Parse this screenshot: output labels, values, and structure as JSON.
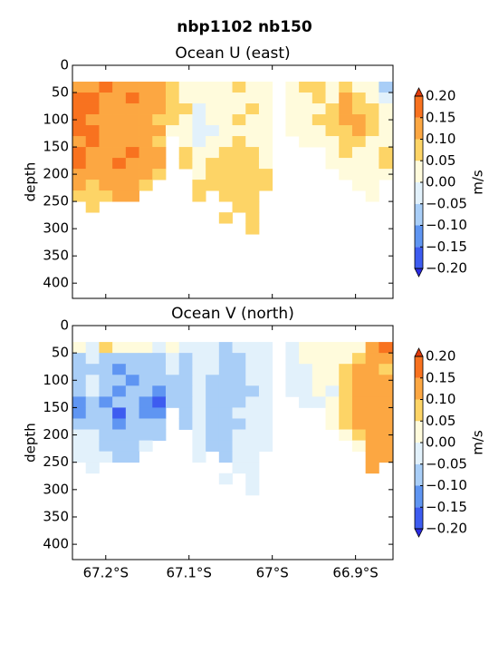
{
  "suptitle": "nbp1102 nb150",
  "chart_data": [
    {
      "type": "contour",
      "title": "Ocean U (east)",
      "ylabel": "depth",
      "y_inverted": true,
      "xlim": [
        -67.24,
        -66.855
      ],
      "xticks": [
        -67.2,
        -67.1,
        -67.0,
        -66.9
      ],
      "ylim": [
        0,
        428
      ],
      "yticks": [
        0,
        50,
        100,
        150,
        200,
        250,
        300,
        350,
        400
      ],
      "x": [
        -67.232,
        -67.216,
        -67.2,
        -67.184,
        -67.168,
        -67.152,
        -67.136,
        -67.12,
        -67.104,
        -67.088,
        -67.072,
        -67.056,
        -67.04,
        -67.024,
        -67.008,
        -66.992,
        -66.976,
        -66.96,
        -66.944,
        -66.928,
        -66.912,
        -66.896,
        -66.88,
        -66.864
      ],
      "depth": [
        40,
        60,
        80,
        100,
        120,
        140,
        160,
        180,
        200,
        220,
        240,
        260,
        280,
        300
      ],
      "values": [
        [
          0.12,
          0.12,
          0.17,
          0.12,
          0.12,
          0.12,
          0.12,
          0.07,
          0.02,
          0.02,
          0.02,
          0.02,
          0.07,
          0.02,
          0.02,
          null,
          0.02,
          0.07,
          0.07,
          0.02,
          0.07,
          0.02,
          0.02,
          -0.07
        ],
        [
          0.17,
          0.17,
          0.12,
          0.12,
          0.17,
          0.12,
          0.12,
          0.07,
          0.02,
          0.02,
          0.02,
          0.02,
          0.02,
          0.02,
          0.02,
          null,
          0.02,
          0.02,
          0.07,
          0.02,
          0.12,
          0.07,
          0.02,
          -0.02
        ],
        [
          0.17,
          0.17,
          0.12,
          0.12,
          0.12,
          0.12,
          0.12,
          0.07,
          0.07,
          -0.02,
          0.02,
          0.02,
          0.02,
          0.07,
          0.02,
          null,
          0.02,
          0.02,
          0.02,
          0.07,
          0.12,
          0.07,
          0.07,
          0.02
        ],
        [
          0.17,
          0.12,
          0.12,
          0.12,
          0.12,
          0.12,
          0.07,
          0.07,
          0.02,
          -0.02,
          0.02,
          0.02,
          0.07,
          0.02,
          0.02,
          null,
          0.02,
          0.02,
          0.07,
          0.07,
          0.12,
          0.12,
          0.07,
          0.02
        ],
        [
          0.17,
          0.17,
          0.12,
          0.12,
          0.12,
          0.12,
          0.12,
          0.02,
          0.02,
          -0.02,
          -0.02,
          0.02,
          0.02,
          0.02,
          0.02,
          null,
          0.02,
          0.02,
          0.02,
          0.07,
          0.07,
          0.12,
          0.07,
          0.02
        ],
        [
          0.12,
          0.17,
          0.12,
          0.12,
          0.12,
          0.12,
          0.07,
          null,
          0.02,
          -0.02,
          0.02,
          0.02,
          0.07,
          0.02,
          0.02,
          null,
          null,
          0.02,
          0.02,
          0.02,
          0.07,
          0.07,
          0.02,
          0.02
        ],
        [
          0.17,
          0.12,
          0.12,
          0.12,
          0.17,
          0.12,
          0.12,
          null,
          0.07,
          0.02,
          0.02,
          0.07,
          0.07,
          0.07,
          0.02,
          null,
          null,
          null,
          null,
          0.02,
          0.07,
          0.02,
          0.02,
          0.07
        ],
        [
          0.17,
          0.12,
          0.12,
          0.17,
          0.12,
          0.12,
          0.12,
          null,
          0.07,
          0.02,
          0.07,
          0.07,
          0.07,
          0.07,
          0.02,
          null,
          null,
          null,
          null,
          0.02,
          0.02,
          0.02,
          0.02,
          0.07
        ],
        [
          0.12,
          0.12,
          0.12,
          0.12,
          0.12,
          0.12,
          0.07,
          null,
          null,
          0.02,
          0.07,
          0.07,
          0.07,
          0.07,
          0.07,
          null,
          null,
          null,
          null,
          null,
          0.02,
          0.02,
          0.02,
          0.02
        ],
        [
          0.12,
          0.07,
          0.12,
          0.12,
          0.12,
          0.07,
          null,
          null,
          null,
          0.07,
          0.07,
          0.07,
          0.07,
          0.07,
          0.07,
          null,
          null,
          null,
          null,
          null,
          null,
          0.02,
          0.02,
          null
        ],
        [
          0.07,
          0.07,
          0.07,
          0.12,
          0.12,
          null,
          null,
          null,
          null,
          0.07,
          null,
          0.07,
          0.07,
          0.07,
          null,
          null,
          null,
          null,
          null,
          null,
          null,
          null,
          0.02,
          null
        ],
        [
          null,
          0.07,
          null,
          null,
          null,
          null,
          null,
          null,
          null,
          null,
          null,
          null,
          0.07,
          0.07,
          null,
          null,
          null,
          null,
          null,
          null,
          null,
          null,
          null,
          null
        ],
        [
          null,
          null,
          null,
          null,
          null,
          null,
          null,
          null,
          null,
          null,
          null,
          0.07,
          null,
          0.07,
          null,
          null,
          null,
          null,
          null,
          null,
          null,
          null,
          null,
          null
        ],
        [
          null,
          null,
          null,
          null,
          null,
          null,
          null,
          null,
          null,
          null,
          null,
          null,
          null,
          0.07,
          null,
          null,
          null,
          null,
          null,
          null,
          null,
          null,
          null,
          null
        ]
      ],
      "levels": [
        -0.2,
        -0.15,
        -0.1,
        -0.05,
        0,
        0.05,
        0.1,
        0.15,
        0.2
      ],
      "colors": [
        "#3d5cf0",
        "#5f95f2",
        "#a9cef7",
        "#e2f1fb",
        "#fffbdc",
        "#fdd466",
        "#fca742",
        "#f8721f"
      ],
      "color_under": "#2a2ae0",
      "color_over": "#e03a0a",
      "colorbar": {
        "label": "m/s",
        "ticks": [
          {
            "value": 0.2,
            "label": "0.20"
          },
          {
            "value": 0.15,
            "label": "0.15"
          },
          {
            "value": 0.1,
            "label": "0.10"
          },
          {
            "value": 0.05,
            "label": "0.05"
          },
          {
            "value": 0,
            "label": "0.00"
          },
          {
            "value": -0.05,
            "label": "−0.05"
          },
          {
            "value": -0.1,
            "label": "−0.10"
          },
          {
            "value": -0.15,
            "label": "−0.15"
          },
          {
            "value": -0.2,
            "label": "−0.20"
          }
        ]
      }
    },
    {
      "type": "contour",
      "title": "Ocean V (north)",
      "ylabel": "depth",
      "y_inverted": true,
      "xlim": [
        -67.24,
        -66.855
      ],
      "xticks": [
        {
          "value": -67.2,
          "label": "67.2°S"
        },
        {
          "value": -67.1,
          "label": "67.1°S"
        },
        {
          "value": -67.0,
          "label": "67°S"
        },
        {
          "value": -66.9,
          "label": "66.9°S"
        }
      ],
      "ylim": [
        0,
        428
      ],
      "yticks": [
        0,
        50,
        100,
        150,
        200,
        250,
        300,
        350,
        400
      ],
      "x": [
        -67.232,
        -67.216,
        -67.2,
        -67.184,
        -67.168,
        -67.152,
        -67.136,
        -67.12,
        -67.104,
        -67.088,
        -67.072,
        -67.056,
        -67.04,
        -67.024,
        -67.008,
        -66.992,
        -66.976,
        -66.96,
        -66.944,
        -66.928,
        -66.912,
        -66.896,
        -66.88,
        -66.864
      ],
      "depth": [
        40,
        60,
        80,
        100,
        120,
        140,
        160,
        180,
        200,
        220,
        240,
        260,
        280,
        300
      ],
      "values": [
        [
          0.02,
          -0.02,
          0.07,
          0.02,
          0.02,
          0.02,
          -0.02,
          0.02,
          -0.02,
          -0.02,
          -0.02,
          -0.07,
          -0.02,
          -0.02,
          -0.02,
          null,
          -0.02,
          0.02,
          0.02,
          0.02,
          0.02,
          0.02,
          0.12,
          0.17
        ],
        [
          -0.07,
          -0.02,
          -0.07,
          -0.07,
          -0.07,
          -0.07,
          -0.07,
          -0.02,
          -0.07,
          -0.02,
          -0.02,
          -0.07,
          -0.07,
          -0.02,
          -0.02,
          null,
          -0.02,
          0.02,
          0.02,
          0.02,
          0.02,
          0.07,
          0.12,
          0.12
        ],
        [
          -0.07,
          -0.07,
          -0.07,
          -0.12,
          -0.07,
          -0.07,
          -0.07,
          -0.02,
          -0.07,
          -0.02,
          -0.02,
          -0.07,
          -0.07,
          -0.02,
          -0.02,
          null,
          -0.02,
          -0.02,
          0.02,
          0.02,
          0.07,
          0.12,
          0.12,
          0.07
        ],
        [
          -0.07,
          -0.02,
          -0.07,
          -0.07,
          -0.12,
          -0.07,
          -0.07,
          -0.07,
          -0.07,
          -0.02,
          -0.07,
          -0.07,
          -0.07,
          -0.02,
          -0.02,
          null,
          -0.02,
          -0.02,
          0.02,
          0.02,
          0.07,
          0.12,
          0.12,
          0.12
        ],
        [
          -0.07,
          -0.02,
          -0.07,
          -0.12,
          -0.07,
          -0.07,
          -0.12,
          -0.07,
          -0.07,
          -0.02,
          -0.07,
          -0.07,
          -0.07,
          -0.07,
          -0.02,
          null,
          -0.02,
          -0.02,
          0.02,
          -0.02,
          0.07,
          0.12,
          0.12,
          0.12
        ],
        [
          -0.12,
          -0.07,
          -0.12,
          -0.07,
          -0.07,
          -0.12,
          -0.17,
          -0.07,
          -0.07,
          -0.02,
          -0.07,
          -0.07,
          -0.07,
          -0.02,
          -0.02,
          null,
          null,
          -0.02,
          -0.02,
          0.02,
          0.07,
          0.12,
          0.12,
          0.12
        ],
        [
          -0.12,
          -0.07,
          -0.07,
          -0.17,
          -0.07,
          -0.12,
          -0.12,
          null,
          -0.07,
          -0.02,
          -0.07,
          -0.07,
          -0.02,
          -0.02,
          -0.02,
          null,
          null,
          null,
          null,
          0.02,
          0.07,
          0.12,
          0.12,
          0.12
        ],
        [
          -0.07,
          -0.07,
          -0.07,
          -0.12,
          -0.07,
          -0.07,
          -0.07,
          null,
          -0.07,
          -0.02,
          -0.07,
          -0.07,
          -0.07,
          -0.02,
          -0.02,
          null,
          null,
          null,
          null,
          0.02,
          0.07,
          0.12,
          0.12,
          0.12
        ],
        [
          -0.02,
          -0.02,
          -0.07,
          -0.07,
          -0.07,
          -0.07,
          -0.07,
          null,
          null,
          -0.02,
          -0.07,
          -0.07,
          -0.02,
          -0.02,
          -0.02,
          null,
          null,
          null,
          null,
          null,
          0.02,
          0.07,
          0.12,
          0.12
        ],
        [
          -0.02,
          -0.02,
          -0.07,
          -0.07,
          -0.07,
          -0.02,
          null,
          null,
          null,
          -0.02,
          -0.07,
          -0.07,
          -0.02,
          -0.02,
          -0.02,
          null,
          null,
          null,
          null,
          null,
          null,
          0.02,
          0.12,
          0.12
        ],
        [
          -0.02,
          -0.02,
          -0.02,
          -0.07,
          -0.07,
          null,
          null,
          null,
          null,
          -0.02,
          null,
          -0.07,
          -0.02,
          -0.02,
          null,
          null,
          null,
          null,
          null,
          null,
          null,
          null,
          0.12,
          0.12
        ],
        [
          null,
          -0.02,
          null,
          null,
          null,
          null,
          null,
          null,
          null,
          null,
          null,
          null,
          -0.02,
          -0.02,
          null,
          null,
          null,
          null,
          null,
          null,
          null,
          null,
          0.12,
          null
        ],
        [
          null,
          null,
          null,
          null,
          null,
          null,
          null,
          null,
          null,
          null,
          null,
          -0.02,
          null,
          -0.02,
          null,
          null,
          null,
          null,
          null,
          null,
          null,
          null,
          null,
          null
        ],
        [
          null,
          null,
          null,
          null,
          null,
          null,
          null,
          null,
          null,
          null,
          null,
          null,
          null,
          -0.02,
          null,
          null,
          null,
          null,
          null,
          null,
          null,
          null,
          null,
          null
        ]
      ],
      "levels": [
        -0.2,
        -0.15,
        -0.1,
        -0.05,
        0,
        0.05,
        0.1,
        0.15,
        0.2
      ],
      "colors": [
        "#3d5cf0",
        "#5f95f2",
        "#a9cef7",
        "#e2f1fb",
        "#fffbdc",
        "#fdd466",
        "#fca742",
        "#f8721f"
      ],
      "color_under": "#2a2ae0",
      "color_over": "#e03a0a",
      "colorbar": {
        "label": "m/s",
        "ticks": [
          {
            "value": 0.2,
            "label": "0.20"
          },
          {
            "value": 0.15,
            "label": "0.15"
          },
          {
            "value": 0.1,
            "label": "0.10"
          },
          {
            "value": 0.05,
            "label": "0.05"
          },
          {
            "value": 0,
            "label": "0.00"
          },
          {
            "value": -0.05,
            "label": "−0.05"
          },
          {
            "value": -0.1,
            "label": "−0.10"
          },
          {
            "value": -0.15,
            "label": "−0.15"
          },
          {
            "value": -0.2,
            "label": "−0.20"
          }
        ]
      }
    }
  ]
}
